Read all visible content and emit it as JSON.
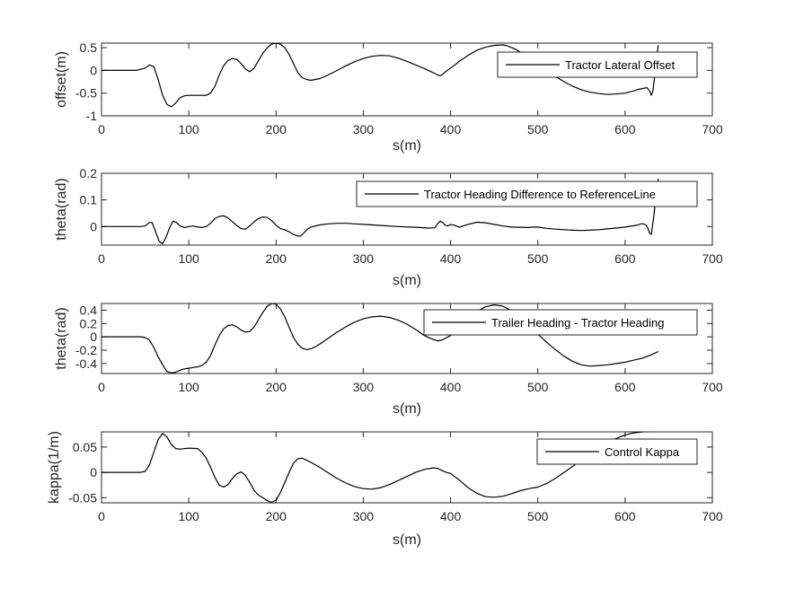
{
  "chart_data": [
    {
      "type": "line",
      "xlabel": "s(m)",
      "ylabel": "offset(m)",
      "xlim": [
        0,
        700
      ],
      "ylim": [
        -1,
        0.6
      ],
      "xticks": [
        0,
        100,
        200,
        300,
        400,
        500,
        600,
        700
      ],
      "yticks": [
        -1,
        -0.5,
        0,
        0.5
      ],
      "ytick_labels": [
        "-1",
        "-0.5",
        "0",
        "0.5"
      ],
      "legend_position": "top-right",
      "grid": false,
      "series": [
        {
          "name": "Tractor Lateral Offset",
          "color": "#000000",
          "x": [
            0,
            40,
            50,
            55,
            60,
            65,
            70,
            75,
            80,
            85,
            90,
            95,
            100,
            110,
            120,
            125,
            130,
            135,
            140,
            145,
            150,
            155,
            160,
            165,
            170,
            175,
            180,
            185,
            190,
            195,
            200,
            205,
            210,
            215,
            220,
            225,
            230,
            235,
            240,
            245,
            250,
            260,
            270,
            280,
            290,
            300,
            310,
            320,
            330,
            340,
            350,
            360,
            370,
            380,
            385,
            388,
            390,
            393,
            395,
            400,
            405,
            410,
            420,
            430,
            440,
            450,
            460,
            465,
            470,
            475,
            480,
            490,
            500,
            510,
            520,
            530,
            540,
            550,
            560,
            570,
            580,
            590,
            600,
            610,
            615,
            620,
            625,
            628,
            630,
            632,
            634,
            636,
            638
          ],
          "values": [
            0,
            0,
            0.05,
            0.12,
            0.08,
            -0.2,
            -0.55,
            -0.75,
            -0.8,
            -0.72,
            -0.6,
            -0.56,
            -0.55,
            -0.55,
            -0.55,
            -0.5,
            -0.35,
            -0.1,
            0.1,
            0.22,
            0.26,
            0.24,
            0.15,
            0.03,
            -0.03,
            0.05,
            0.22,
            0.38,
            0.5,
            0.58,
            0.6,
            0.58,
            0.5,
            0.35,
            0.15,
            -0.05,
            -0.16,
            -0.2,
            -0.22,
            -0.2,
            -0.18,
            -0.1,
            0,
            0.1,
            0.19,
            0.26,
            0.31,
            0.33,
            0.32,
            0.27,
            0.2,
            0.12,
            0.04,
            -0.05,
            -0.1,
            -0.12,
            -0.1,
            -0.05,
            -0.02,
            0.05,
            0.12,
            0.2,
            0.33,
            0.44,
            0.51,
            0.55,
            0.56,
            0.54,
            0.5,
            0.46,
            0.4,
            0.28,
            0.14,
            0,
            -0.13,
            -0.25,
            -0.35,
            -0.43,
            -0.48,
            -0.51,
            -0.53,
            -0.52,
            -0.5,
            -0.45,
            -0.42,
            -0.4,
            -0.38,
            -0.45,
            -0.55,
            -0.45,
            -0.1,
            0.25,
            0.55
          ]
        }
      ]
    },
    {
      "type": "line",
      "xlabel": "s(m)",
      "ylabel": "theta(rad)",
      "xlim": [
        0,
        700
      ],
      "ylim": [
        -0.07,
        0.2
      ],
      "xticks": [
        0,
        100,
        200,
        300,
        400,
        500,
        600,
        700
      ],
      "yticks": [
        0,
        0.1,
        0.2
      ],
      "ytick_labels": [
        "0",
        "0.1",
        "0.2"
      ],
      "legend_position": "top-right",
      "grid": false,
      "series": [
        {
          "name": "Tractor Heading Difference to ReferenceLine",
          "color": "#000000",
          "x": [
            0,
            45,
            50,
            55,
            58,
            62,
            66,
            70,
            74,
            78,
            82,
            86,
            90,
            95,
            100,
            105,
            110,
            115,
            120,
            125,
            130,
            135,
            140,
            145,
            150,
            155,
            160,
            165,
            170,
            175,
            180,
            185,
            190,
            195,
            200,
            205,
            210,
            215,
            220,
            225,
            228,
            232,
            236,
            240,
            250,
            260,
            270,
            280,
            290,
            300,
            320,
            340,
            360,
            375,
            382,
            385,
            388,
            391,
            394,
            397,
            400,
            405,
            410,
            420,
            430,
            440,
            450,
            460,
            470,
            480,
            490,
            495,
            500,
            510,
            520,
            530,
            540,
            550,
            560,
            570,
            580,
            590,
            600,
            610,
            615,
            618,
            621,
            624,
            626,
            628,
            630,
            633,
            636,
            638
          ],
          "values": [
            0,
            0,
            0.002,
            0.015,
            0.015,
            -0.02,
            -0.055,
            -0.065,
            -0.04,
            -0.005,
            0.02,
            0.015,
            0.002,
            -0.004,
            0,
            0.002,
            -0.002,
            -0.004,
            0,
            0.012,
            0.03,
            0.038,
            0.04,
            0.032,
            0.018,
            0.004,
            -0.008,
            -0.01,
            0.002,
            0.018,
            0.03,
            0.036,
            0.034,
            0.022,
            0.005,
            -0.008,
            -0.012,
            -0.02,
            -0.03,
            -0.036,
            -0.036,
            -0.024,
            -0.01,
            -0.002,
            0.006,
            0.01,
            0.012,
            0.012,
            0.01,
            0.008,
            0.004,
            0,
            -0.003,
            -0.006,
            -0.005,
            0.01,
            0.02,
            0.015,
            0.005,
            0.002,
            0.008,
            0.004,
            -0.003,
            0.008,
            0.016,
            0.014,
            0.008,
            0.002,
            -0.002,
            -0.003,
            -0.004,
            -0.002,
            -0.002,
            -0.007,
            -0.01,
            -0.012,
            -0.014,
            -0.015,
            -0.014,
            -0.012,
            -0.009,
            -0.006,
            -0.002,
            0.003,
            0.006,
            0.01,
            0.01,
            0.006,
            -0.005,
            -0.025,
            -0.03,
            0.04,
            0.13,
            0.18
          ]
        }
      ]
    },
    {
      "type": "line",
      "xlabel": "s(m)",
      "ylabel": "theta(rad)",
      "xlim": [
        0,
        700
      ],
      "ylim": [
        -0.55,
        0.5
      ],
      "xticks": [
        0,
        100,
        200,
        300,
        400,
        500,
        600,
        700
      ],
      "yticks": [
        -0.4,
        -0.2,
        0,
        0.2,
        0.4
      ],
      "ytick_labels": [
        "-0.4",
        "-0.2",
        "0",
        "0.2",
        "0.4"
      ],
      "legend_position": "top-right",
      "grid": false,
      "series": [
        {
          "name": "Trailer Heading - Tractor Heading",
          "color": "#000000",
          "x": [
            0,
            45,
            50,
            55,
            60,
            65,
            70,
            75,
            80,
            85,
            90,
            95,
            100,
            105,
            110,
            115,
            120,
            125,
            130,
            135,
            140,
            145,
            150,
            155,
            160,
            165,
            170,
            175,
            180,
            185,
            190,
            195,
            200,
            205,
            210,
            215,
            220,
            225,
            230,
            235,
            240,
            245,
            250,
            260,
            270,
            280,
            290,
            300,
            310,
            320,
            330,
            340,
            350,
            360,
            370,
            380,
            385,
            390,
            400,
            410,
            420,
            430,
            440,
            450,
            460,
            470,
            480,
            490,
            500,
            510,
            520,
            530,
            540,
            550,
            560,
            570,
            580,
            590,
            600,
            610,
            620,
            630,
            638
          ],
          "values": [
            0,
            0,
            -0.01,
            -0.05,
            -0.16,
            -0.3,
            -0.42,
            -0.52,
            -0.54,
            -0.53,
            -0.5,
            -0.48,
            -0.47,
            -0.46,
            -0.45,
            -0.43,
            -0.38,
            -0.28,
            -0.12,
            0.02,
            0.12,
            0.17,
            0.18,
            0.15,
            0.1,
            0.07,
            0.08,
            0.15,
            0.26,
            0.37,
            0.46,
            0.5,
            0.49,
            0.42,
            0.3,
            0.14,
            -0.01,
            -0.11,
            -0.17,
            -0.19,
            -0.18,
            -0.15,
            -0.11,
            -0.02,
            0.07,
            0.15,
            0.22,
            0.27,
            0.3,
            0.31,
            0.29,
            0.25,
            0.19,
            0.11,
            0.02,
            -0.04,
            -0.06,
            -0.05,
            0.02,
            0.12,
            0.26,
            0.38,
            0.45,
            0.48,
            0.46,
            0.39,
            0.29,
            0.17,
            0.04,
            -0.08,
            -0.19,
            -0.29,
            -0.37,
            -0.42,
            -0.44,
            -0.43,
            -0.42,
            -0.4,
            -0.38,
            -0.35,
            -0.32,
            -0.27,
            -0.22
          ]
        }
      ]
    },
    {
      "type": "line",
      "xlabel": "s(m)",
      "ylabel": "kappa(1/m)",
      "xlim": [
        0,
        700
      ],
      "ylim": [
        -0.06,
        0.08
      ],
      "xticks": [
        0,
        100,
        200,
        300,
        400,
        500,
        600,
        700
      ],
      "yticks": [
        -0.05,
        0,
        0.05
      ],
      "ytick_labels": [
        "-0.05",
        "0",
        "0.05"
      ],
      "legend_position": "top-right",
      "grid": false,
      "series": [
        {
          "name": "Control Kappa",
          "color": "#000000",
          "x": [
            0,
            45,
            50,
            55,
            60,
            65,
            70,
            75,
            80,
            85,
            90,
            100,
            110,
            115,
            120,
            125,
            130,
            135,
            140,
            145,
            150,
            155,
            160,
            165,
            170,
            175,
            180,
            185,
            190,
            195,
            200,
            205,
            210,
            215,
            220,
            225,
            230,
            235,
            240,
            250,
            260,
            270,
            280,
            290,
            300,
            310,
            320,
            330,
            340,
            350,
            360,
            370,
            380,
            385,
            390,
            395,
            400,
            410,
            420,
            430,
            440,
            450,
            460,
            470,
            480,
            490,
            500,
            510,
            520,
            530,
            540,
            550,
            560,
            570,
            580,
            590,
            600,
            610,
            620,
            630,
            638
          ],
          "values": [
            0,
            0,
            0.002,
            0.015,
            0.04,
            0.065,
            0.077,
            0.07,
            0.055,
            0.047,
            0.046,
            0.048,
            0.047,
            0.04,
            0.028,
            0.01,
            -0.01,
            -0.025,
            -0.029,
            -0.024,
            -0.012,
            -0.003,
            0.001,
            -0.006,
            -0.02,
            -0.036,
            -0.045,
            -0.05,
            -0.056,
            -0.059,
            -0.055,
            -0.04,
            -0.02,
            0,
            0.018,
            0.027,
            0.028,
            0.024,
            0.02,
            0.01,
            -0.001,
            -0.012,
            -0.021,
            -0.028,
            -0.032,
            -0.033,
            -0.03,
            -0.024,
            -0.016,
            -0.008,
            0,
            0.006,
            0.009,
            0.008,
            0.004,
            0,
            -0.002,
            -0.015,
            -0.03,
            -0.041,
            -0.048,
            -0.049,
            -0.047,
            -0.042,
            -0.036,
            -0.032,
            -0.029,
            -0.022,
            -0.012,
            0,
            0.012,
            0.025,
            0.037,
            0.048,
            0.058,
            0.067,
            0.074,
            0.078,
            0.08,
            0.081,
            0.082
          ]
        }
      ]
    }
  ]
}
